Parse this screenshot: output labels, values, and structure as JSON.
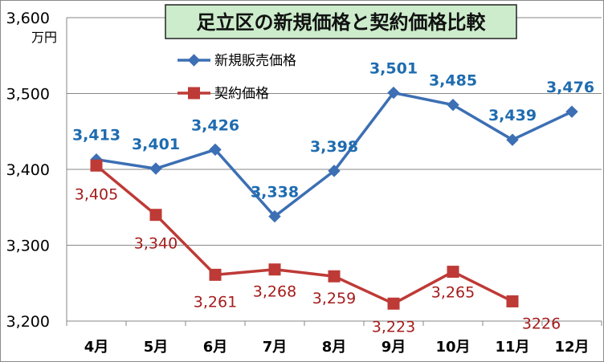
{
  "chart_data": {
    "type": "line",
    "title": "足立区の新規価格と契約価格比較",
    "ylabel": "万円",
    "categories": [
      "4月",
      "5月",
      "6月",
      "7月",
      "8月",
      "9月",
      "10月",
      "11月",
      "12月"
    ],
    "ylim": [
      3200,
      3600
    ],
    "yticks": [
      "3,200",
      "3,300",
      "3,400",
      "3,500",
      "3,600"
    ],
    "grid": true,
    "legend_position": "top-left",
    "series": [
      {
        "name": "新規販売価格",
        "color": "#3C6FB4",
        "label_color": "#1F6CB0",
        "marker": "diamond",
        "values": [
          3413,
          3401,
          3426,
          3338,
          3398,
          3501,
          3485,
          3439,
          3476
        ],
        "labels": [
          "3,413",
          "3,401",
          "3,426",
          "3,338",
          "3,398",
          "3,501",
          "3,485",
          "3,439",
          "3,476"
        ]
      },
      {
        "name": "契約価格",
        "color": "#BE3A36",
        "label_color": "#A51C1C",
        "marker": "square",
        "values": [
          3405,
          3340,
          3261,
          3268,
          3259,
          3223,
          3265,
          3226,
          null
        ],
        "labels": [
          "3,405",
          "3,340",
          "3,261",
          "3,268",
          "3,259",
          "3,223",
          "3,265",
          "3226",
          null
        ]
      }
    ],
    "colors": {
      "title_bg": "#CCECCC",
      "title_border": "#222222",
      "grid": "#878787",
      "axis_text": "#000000"
    }
  }
}
